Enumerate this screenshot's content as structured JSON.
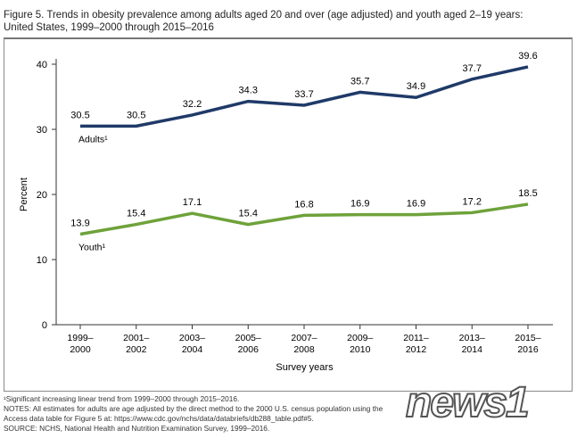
{
  "title_line1": "Figure 5. Trends in obesity prevalence among adults aged 20 and over (age adjusted) and youth aged 2–19 years:",
  "title_line2": "United States, 1999–2000 through 2015–2016",
  "chart_data": {
    "type": "line",
    "categories": [
      [
        "1999–",
        "2000"
      ],
      [
        "2001–",
        "2002"
      ],
      [
        "2003–",
        "2004"
      ],
      [
        "2005–",
        "2006"
      ],
      [
        "2007–",
        "2008"
      ],
      [
        "2009–",
        "2010"
      ],
      [
        "2011–",
        "2012"
      ],
      [
        "2013–",
        "2014"
      ],
      [
        "2015–",
        "2016"
      ]
    ],
    "series": [
      {
        "name": "Adults¹",
        "color": "#1f3a68",
        "values": [
          30.5,
          30.5,
          32.2,
          34.3,
          33.7,
          35.7,
          34.9,
          37.7,
          39.6
        ]
      },
      {
        "name": "Youth¹",
        "color": "#6ea23a",
        "values": [
          13.9,
          15.4,
          17.1,
          15.4,
          16.8,
          16.9,
          16.9,
          17.2,
          18.5
        ]
      }
    ],
    "xlabel": "Survey years",
    "ylabel": "Percent",
    "ylim": [
      0,
      40
    ],
    "yticks": [
      0,
      10,
      20,
      30,
      40
    ],
    "grid": false,
    "legend": "inline labels"
  },
  "footnotes": [
    "¹Significant increasing linear trend from 1999–2000 through 2015–2016.",
    "NOTES: All estimates for adults are age adjusted by the direct method to the 2000 U.S. census population using the",
    "Access data table for Figure 5 at: https://www.cdc.gov/nchs/data/databriefs/db288_table.pdf#5.",
    "SOURCE: NCHS, National Health and Nutrition Examination Survey, 1999–2016."
  ],
  "watermark": "news1"
}
